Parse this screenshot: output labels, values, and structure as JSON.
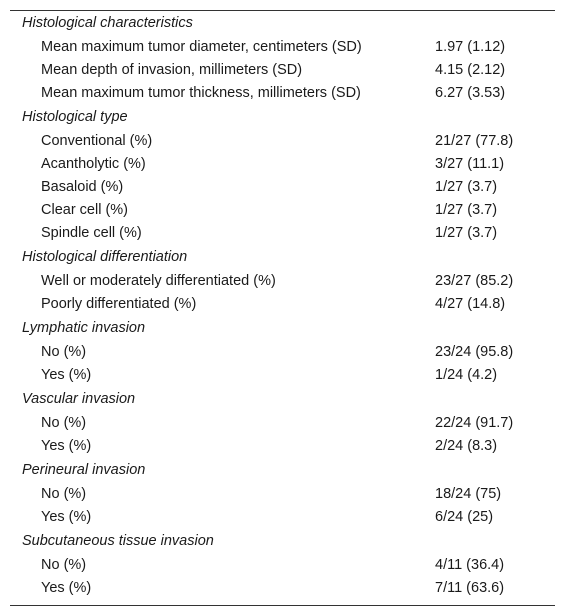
{
  "sections": [
    {
      "title": "Histological characteristics",
      "rows": [
        {
          "label": "Mean maximum tumor diameter, centimeters (SD)",
          "value": "1.97 (1.12)"
        },
        {
          "label": "Mean depth of invasion, millimeters (SD)",
          "value": "4.15 (2.12)"
        },
        {
          "label": "Mean maximum tumor thickness, millimeters (SD)",
          "value": "6.27 (3.53)"
        }
      ]
    },
    {
      "title": "Histological type",
      "rows": [
        {
          "label": "Conventional (%)",
          "value": "21/27 (77.8)"
        },
        {
          "label": "Acantholytic (%)",
          "value": "3/27 (11.1)"
        },
        {
          "label": "Basaloid (%)",
          "value": "1/27 (3.7)"
        },
        {
          "label": "Clear cell (%)",
          "value": "1/27 (3.7)"
        },
        {
          "label": "Spindle cell (%)",
          "value": "1/27 (3.7)"
        }
      ]
    },
    {
      "title": "Histological differentiation",
      "rows": [
        {
          "label": "Well or moderately differentiated (%)",
          "value": "23/27 (85.2)"
        },
        {
          "label": "Poorly differentiated (%)",
          "value": "4/27 (14.8)"
        }
      ]
    },
    {
      "title": "Lymphatic invasion",
      "rows": [
        {
          "label": "No (%)",
          "value": "23/24 (95.8)"
        },
        {
          "label": "Yes (%)",
          "value": "1/24 (4.2)"
        }
      ]
    },
    {
      "title": "Vascular invasion",
      "rows": [
        {
          "label": "No (%)",
          "value": "22/24 (91.7)"
        },
        {
          "label": "Yes (%)",
          "value": "2/24 (8.3)"
        }
      ]
    },
    {
      "title": "Perineural invasion",
      "rows": [
        {
          "label": "No (%)",
          "value": "18/24 (75)"
        },
        {
          "label": "Yes (%)",
          "value": "6/24 (25)"
        }
      ]
    },
    {
      "title": "Subcutaneous tissue invasion",
      "rows": [
        {
          "label": "No (%)",
          "value": "4/11 (36.4)"
        },
        {
          "label": "Yes (%)",
          "value": "7/11 (63.6)"
        }
      ]
    }
  ]
}
